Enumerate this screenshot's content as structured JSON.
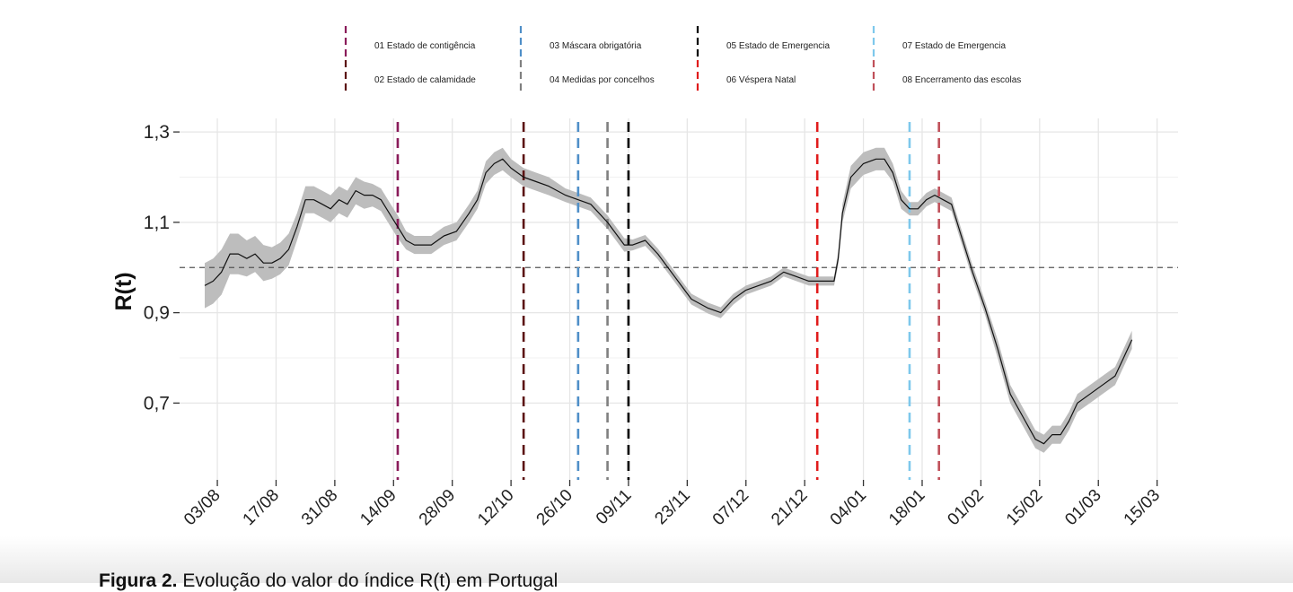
{
  "chart_data": {
    "type": "line",
    "title": "",
    "ylabel": "R(t)",
    "xlabel": "",
    "ylim": [
      0.53,
      1.33
    ],
    "y_ticks": [
      {
        "value": 0.7,
        "label": "0,7"
      },
      {
        "value": 0.9,
        "label": "0,9"
      },
      {
        "value": 1.1,
        "label": "1,1"
      },
      {
        "value": 1.3,
        "label": "1,3"
      }
    ],
    "x_ticks": [
      "03/08",
      "17/08",
      "31/08",
      "14/09",
      "28/09",
      "12/10",
      "26/10",
      "09/11",
      "23/11",
      "07/12",
      "21/12",
      "04/01",
      "18/01",
      "01/02",
      "15/02",
      "01/03",
      "15/03"
    ],
    "x_tick_dates": [
      "2020-08-03",
      "2020-08-17",
      "2020-08-31",
      "2020-09-14",
      "2020-09-28",
      "2020-10-12",
      "2020-10-26",
      "2020-11-09",
      "2020-11-23",
      "2020-12-07",
      "2020-12-21",
      "2021-01-04",
      "2021-01-18",
      "2021-02-01",
      "2021-02-15",
      "2021-03-01",
      "2021-03-15"
    ],
    "xlim": [
      "2020-07-25",
      "2021-03-20"
    ],
    "reference_line": 1.0,
    "grid": true,
    "series": [
      {
        "color": "#111111",
        "band_color": "#bdbdbd",
        "points": [
          [
            "2020-07-31",
            0.96,
            0.05
          ],
          [
            "2020-08-02",
            0.97,
            0.05
          ],
          [
            "2020-08-04",
            0.99,
            0.05
          ],
          [
            "2020-08-06",
            1.03,
            0.045
          ],
          [
            "2020-08-08",
            1.03,
            0.045
          ],
          [
            "2020-08-10",
            1.02,
            0.04
          ],
          [
            "2020-08-12",
            1.03,
            0.04
          ],
          [
            "2020-08-14",
            1.01,
            0.04
          ],
          [
            "2020-08-16",
            1.01,
            0.035
          ],
          [
            "2020-08-18",
            1.02,
            0.035
          ],
          [
            "2020-08-20",
            1.04,
            0.035
          ],
          [
            "2020-08-22",
            1.09,
            0.03
          ],
          [
            "2020-08-24",
            1.15,
            0.03
          ],
          [
            "2020-08-26",
            1.15,
            0.03
          ],
          [
            "2020-08-28",
            1.14,
            0.03
          ],
          [
            "2020-08-30",
            1.13,
            0.03
          ],
          [
            "2020-09-01",
            1.15,
            0.03
          ],
          [
            "2020-09-03",
            1.14,
            0.03
          ],
          [
            "2020-09-05",
            1.17,
            0.03
          ],
          [
            "2020-09-07",
            1.16,
            0.03
          ],
          [
            "2020-09-09",
            1.16,
            0.025
          ],
          [
            "2020-09-11",
            1.15,
            0.025
          ],
          [
            "2020-09-13",
            1.12,
            0.025
          ],
          [
            "2020-09-15",
            1.09,
            0.025
          ],
          [
            "2020-09-17",
            1.06,
            0.02
          ],
          [
            "2020-09-19",
            1.05,
            0.02
          ],
          [
            "2020-09-21",
            1.05,
            0.02
          ],
          [
            "2020-09-23",
            1.05,
            0.02
          ],
          [
            "2020-09-26",
            1.07,
            0.02
          ],
          [
            "2020-09-29",
            1.08,
            0.02
          ],
          [
            "2020-10-02",
            1.12,
            0.02
          ],
          [
            "2020-10-04",
            1.15,
            0.02
          ],
          [
            "2020-10-06",
            1.21,
            0.025
          ],
          [
            "2020-10-08",
            1.23,
            0.025
          ],
          [
            "2020-10-10",
            1.24,
            0.025
          ],
          [
            "2020-10-12",
            1.22,
            0.02
          ],
          [
            "2020-10-15",
            1.2,
            0.02
          ],
          [
            "2020-10-18",
            1.19,
            0.02
          ],
          [
            "2020-10-21",
            1.18,
            0.02
          ],
          [
            "2020-10-25",
            1.16,
            0.015
          ],
          [
            "2020-10-28",
            1.15,
            0.015
          ],
          [
            "2020-10-31",
            1.14,
            0.015
          ],
          [
            "2020-11-04",
            1.1,
            0.015
          ],
          [
            "2020-11-08",
            1.05,
            0.015
          ],
          [
            "2020-11-10",
            1.05,
            0.012
          ],
          [
            "2020-11-13",
            1.06,
            0.012
          ],
          [
            "2020-11-16",
            1.03,
            0.012
          ],
          [
            "2020-11-20",
            0.98,
            0.012
          ],
          [
            "2020-11-24",
            0.93,
            0.012
          ],
          [
            "2020-11-28",
            0.91,
            0.012
          ],
          [
            "2020-12-01",
            0.9,
            0.012
          ],
          [
            "2020-12-04",
            0.93,
            0.012
          ],
          [
            "2020-12-07",
            0.95,
            0.01
          ],
          [
            "2020-12-10",
            0.96,
            0.01
          ],
          [
            "2020-12-13",
            0.97,
            0.01
          ],
          [
            "2020-12-16",
            0.99,
            0.01
          ],
          [
            "2020-12-19",
            0.98,
            0.01
          ],
          [
            "2020-12-22",
            0.97,
            0.01
          ],
          [
            "2020-12-25",
            0.97,
            0.01
          ],
          [
            "2020-12-28",
            0.97,
            0.01
          ],
          [
            "2020-12-29",
            1.02,
            0.015
          ],
          [
            "2020-12-30",
            1.12,
            0.02
          ],
          [
            "2021-01-01",
            1.2,
            0.025
          ],
          [
            "2021-01-04",
            1.23,
            0.025
          ],
          [
            "2021-01-07",
            1.24,
            0.025
          ],
          [
            "2021-01-09",
            1.24,
            0.025
          ],
          [
            "2021-01-11",
            1.21,
            0.02
          ],
          [
            "2021-01-13",
            1.15,
            0.02
          ],
          [
            "2021-01-15",
            1.13,
            0.015
          ],
          [
            "2021-01-17",
            1.13,
            0.015
          ],
          [
            "2021-01-19",
            1.15,
            0.015
          ],
          [
            "2021-01-21",
            1.16,
            0.015
          ],
          [
            "2021-01-23",
            1.15,
            0.015
          ],
          [
            "2021-01-25",
            1.14,
            0.015
          ],
          [
            "2021-01-27",
            1.08,
            0.015
          ],
          [
            "2021-01-30",
            0.99,
            0.015
          ],
          [
            "2021-02-02",
            0.91,
            0.015
          ],
          [
            "2021-02-05",
            0.82,
            0.02
          ],
          [
            "2021-02-08",
            0.72,
            0.02
          ],
          [
            "2021-02-11",
            0.67,
            0.02
          ],
          [
            "2021-02-14",
            0.62,
            0.02
          ],
          [
            "2021-02-16",
            0.61,
            0.02
          ],
          [
            "2021-02-18",
            0.63,
            0.02
          ],
          [
            "2021-02-20",
            0.63,
            0.02
          ],
          [
            "2021-02-22",
            0.66,
            0.02
          ],
          [
            "2021-02-24",
            0.7,
            0.02
          ],
          [
            "2021-02-27",
            0.72,
            0.02
          ],
          [
            "2021-03-02",
            0.74,
            0.02
          ],
          [
            "2021-03-05",
            0.76,
            0.02
          ],
          [
            "2021-03-07",
            0.8,
            0.02
          ],
          [
            "2021-03-09",
            0.84,
            0.02
          ]
        ]
      }
    ],
    "events": [
      {
        "label": "01 Estado de contigência",
        "date": "2020-09-15",
        "color": "#8a1c5a"
      },
      {
        "label": "02 Estado de calamidade",
        "date": "2020-10-15",
        "color": "#5c1414"
      },
      {
        "label": "03 Máscara obrigatória",
        "date": "2020-10-28",
        "color": "#4f8fc8"
      },
      {
        "label": "04 Medidas por concelhos",
        "date": "2020-11-04",
        "color": "#808080"
      },
      {
        "label": "05 Estado de Emergencia",
        "date": "2020-11-09",
        "color": "#000000"
      },
      {
        "label": "06 Véspera Natal",
        "date": "2020-12-24",
        "color": "#e01b1b"
      },
      {
        "label": "07 Estado de Emergencia",
        "date": "2021-01-15",
        "color": "#7ec8ec"
      },
      {
        "label": "08 Encerramento das escolas",
        "date": "2021-01-22",
        "color": "#c0505a"
      }
    ]
  },
  "caption": {
    "prefix": "Figura 2.",
    "text": "Evolução do valor do índice R(t) em Portugal"
  }
}
